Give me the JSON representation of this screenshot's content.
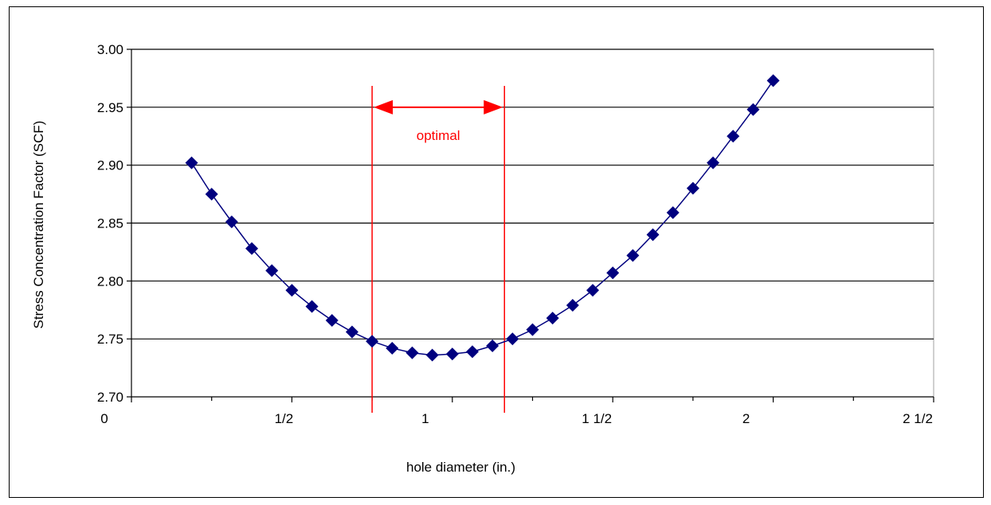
{
  "chart_data": {
    "type": "line",
    "xlabel": "hole diameter (in.)",
    "ylabel": "Stress Concentration Factor (SCF)",
    "xlim": [
      0,
      2.5
    ],
    "ylim": [
      2.7,
      3.0
    ],
    "x_ticks": [
      0,
      0.5,
      1,
      1.5,
      2,
      2.5
    ],
    "x_tick_labels": [
      "0",
      "1/2",
      "1",
      "1  1/2",
      "2",
      "2  1/2"
    ],
    "y_ticks": [
      2.7,
      2.75,
      2.8,
      2.85,
      2.9,
      2.95,
      3.0
    ],
    "y_tick_labels": [
      "2.70",
      "2.75",
      "2.80",
      "2.85",
      "2.90",
      "2.95",
      "3.00"
    ],
    "grid": "horizontal",
    "legend": "none",
    "series": [
      {
        "color": "#00007f",
        "marker": "diamond",
        "x": [
          0.1875,
          0.25,
          0.3125,
          0.375,
          0.4375,
          0.5,
          0.5625,
          0.625,
          0.6875,
          0.75,
          0.8125,
          0.875,
          0.9375,
          1.0,
          1.0625,
          1.125,
          1.1875,
          1.25,
          1.3125,
          1.375,
          1.4375,
          1.5,
          1.5625,
          1.625,
          1.6875,
          1.75,
          1.8125,
          1.875,
          1.9375,
          2.0
        ],
        "y": [
          2.902,
          2.875,
          2.851,
          2.828,
          2.809,
          2.792,
          2.778,
          2.766,
          2.756,
          2.748,
          2.742,
          2.738,
          2.736,
          2.737,
          2.739,
          2.744,
          2.75,
          2.758,
          2.768,
          2.779,
          2.792,
          2.807,
          2.822,
          2.84,
          2.859,
          2.88,
          2.902,
          2.925,
          2.948,
          2.973
        ]
      }
    ],
    "annotations": {
      "optimal_label": "optimal",
      "optimal_range": [
        0.75,
        1.1625
      ],
      "color": "#ff0000"
    }
  }
}
